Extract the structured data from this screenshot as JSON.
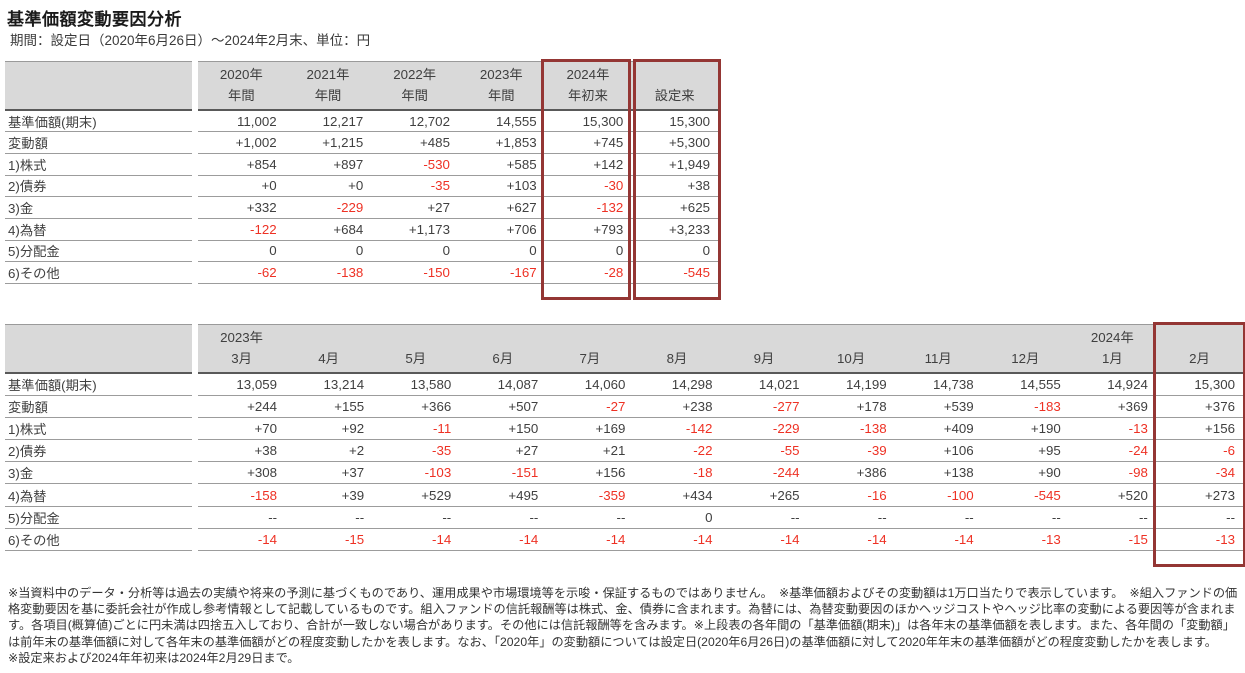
{
  "page": {
    "title": "基準価額変動要因分析",
    "subtitle": "期間：設定日（2020年6月26日）～2024年2月末、単位：円"
  },
  "colors": {
    "highlight_border": "#943634",
    "negative_text": "#ee3124",
    "header_background": "#d9d9d9",
    "body_text": "#404040"
  },
  "yearly_table": {
    "columns": [
      {
        "top": "2020年",
        "bottom": "年間"
      },
      {
        "top": "2021年",
        "bottom": "年間"
      },
      {
        "top": "2022年",
        "bottom": "年間"
      },
      {
        "top": "2023年",
        "bottom": "年間"
      },
      {
        "top": "2024年",
        "bottom": "年初来",
        "highlight": true
      },
      {
        "top": "",
        "bottom": "設定来",
        "highlight": true
      }
    ],
    "rows": [
      {
        "label": "基準価額(期末)",
        "values": [
          "11,002",
          "12,217",
          "12,702",
          "14,555",
          "15,300",
          "15,300"
        ]
      },
      {
        "label": "変動額",
        "values": [
          "+1,002",
          "+1,215",
          "+485",
          "+1,853",
          "+745",
          "+5,300"
        ]
      },
      {
        "label": "1)株式",
        "values": [
          "+854",
          "+897",
          "-530",
          "+585",
          "+142",
          "+1,949"
        ]
      },
      {
        "label": "2)債券",
        "values": [
          "+0",
          "+0",
          "-35",
          "+103",
          "-30",
          "+38"
        ]
      },
      {
        "label": "3)金",
        "values": [
          "+332",
          "-229",
          "+27",
          "+627",
          "-132",
          "+625"
        ]
      },
      {
        "label": "4)為替",
        "values": [
          "-122",
          "+684",
          "+1,173",
          "+706",
          "+793",
          "+3,233"
        ]
      },
      {
        "label": "5)分配金",
        "values": [
          "0",
          "0",
          "0",
          "0",
          "0",
          "0"
        ]
      },
      {
        "label": "6)その他",
        "values": [
          "-62",
          "-138",
          "-150",
          "-167",
          "-28",
          "-545"
        ]
      }
    ]
  },
  "monthly_table": {
    "columns": [
      {
        "top": "2023年",
        "bottom": "3月"
      },
      {
        "top": "",
        "bottom": "4月"
      },
      {
        "top": "",
        "bottom": "5月"
      },
      {
        "top": "",
        "bottom": "6月"
      },
      {
        "top": "",
        "bottom": "7月"
      },
      {
        "top": "",
        "bottom": "8月"
      },
      {
        "top": "",
        "bottom": "9月"
      },
      {
        "top": "",
        "bottom": "10月"
      },
      {
        "top": "",
        "bottom": "11月"
      },
      {
        "top": "",
        "bottom": "12月"
      },
      {
        "top": "2024年",
        "bottom": "1月"
      },
      {
        "top": "",
        "bottom": "2月",
        "highlight": true
      }
    ],
    "rows": [
      {
        "label": "基準価額(期末)",
        "values": [
          "13,059",
          "13,214",
          "13,580",
          "14,087",
          "14,060",
          "14,298",
          "14,021",
          "14,199",
          "14,738",
          "14,555",
          "14,924",
          "15,300"
        ]
      },
      {
        "label": "変動額",
        "values": [
          "+244",
          "+155",
          "+366",
          "+507",
          "-27",
          "+238",
          "-277",
          "+178",
          "+539",
          "-183",
          "+369",
          "+376"
        ]
      },
      {
        "label": "1)株式",
        "values": [
          "+70",
          "+92",
          "-11",
          "+150",
          "+169",
          "-142",
          "-229",
          "-138",
          "+409",
          "+190",
          "-13",
          "+156"
        ]
      },
      {
        "label": "2)債券",
        "values": [
          "+38",
          "+2",
          "-35",
          "+27",
          "+21",
          "-22",
          "-55",
          "-39",
          "+106",
          "+95",
          "-24",
          "-6"
        ]
      },
      {
        "label": "3)金",
        "values": [
          "+308",
          "+37",
          "-103",
          "-151",
          "+156",
          "-18",
          "-244",
          "+386",
          "+138",
          "+90",
          "-98",
          "-34"
        ]
      },
      {
        "label": "4)為替",
        "values": [
          "-158",
          "+39",
          "+529",
          "+495",
          "-359",
          "+434",
          "+265",
          "-16",
          "-100",
          "-545",
          "+520",
          "+273"
        ]
      },
      {
        "label": "5)分配金",
        "values": [
          "--",
          "--",
          "--",
          "--",
          "--",
          "0",
          "--",
          "--",
          "--",
          "--",
          "--",
          "--"
        ]
      },
      {
        "label": "6)その他",
        "values": [
          "-14",
          "-15",
          "-14",
          "-14",
          "-14",
          "-14",
          "-14",
          "-14",
          "-14",
          "-13",
          "-15",
          "-13"
        ]
      }
    ]
  },
  "footnotes": [
    "※当資料中のデータ・分析等は過去の実績や将来の予測に基づくものであり、運用成果や市場環境等を示唆・保証するものではありません。　※基準価額およびその変動額は1万口当たりで表示しています。　※組入ファンドの価格変動要因を基に委託会社が作成し参考情報として記載しているものです。組入ファンドの信託報酬等は株式、金、債券に含まれます。為替には、為替変動要因のほかヘッジコストやヘッジ比率の変動による要因等が含まれます。各項目(概算値)ごとに円未満は四捨五入しており、合計が一致しない場合があります。その他には信託報酬等を含みます。※上段表の各年間の「基準価額(期末)」は各年末の基準価額を表します。また、各年間の「変動額」は前年末の基準価額に対して各年末の基準価額がどの程度変動したかを表します。なお、「2020年」の変動額については設定日(2020年6月26日)の基準価額に対して2020年年末の基準価額がどの程度変動したかを表します。",
    "※設定来および2024年年初来は2024年2月29日まで。"
  ]
}
